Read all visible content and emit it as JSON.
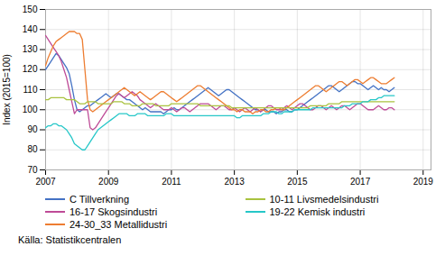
{
  "chart_data": {
    "type": "line",
    "ylabel": "Index (2015=100)",
    "xlim": [
      2007.0,
      2019.25
    ],
    "xticks": [
      2007,
      2009,
      2011,
      2013,
      2015,
      2017,
      2019
    ],
    "ylim": [
      70,
      150
    ],
    "yticks": [
      70,
      80,
      90,
      100,
      110,
      120,
      130,
      140,
      150
    ],
    "grid": true,
    "legend": "bottom",
    "source": "Källa: Statistikcentralen",
    "x": [
      2007,
      2007.083333,
      2007.166667,
      2007.25,
      2007.333333,
      2007.416667,
      2007.5,
      2007.583333,
      2007.666667,
      2007.75,
      2007.833333,
      2007.916667,
      2008,
      2008.083333,
      2008.166667,
      2008.25,
      2008.333333,
      2008.416667,
      2008.5,
      2008.583333,
      2008.666667,
      2008.75,
      2008.833333,
      2008.916667,
      2009,
      2009.083333,
      2009.166667,
      2009.25,
      2009.333333,
      2009.416667,
      2009.5,
      2009.583333,
      2009.666667,
      2009.75,
      2009.833333,
      2009.916667,
      2010,
      2010.083333,
      2010.166667,
      2010.25,
      2010.333333,
      2010.416667,
      2010.5,
      2010.583333,
      2010.666667,
      2010.75,
      2010.833333,
      2010.916667,
      2011,
      2011.083333,
      2011.166667,
      2011.25,
      2011.333333,
      2011.416667,
      2011.5,
      2011.583333,
      2011.666667,
      2011.75,
      2011.833333,
      2011.916667,
      2012,
      2012.083333,
      2012.166667,
      2012.25,
      2012.333333,
      2012.416667,
      2012.5,
      2012.583333,
      2012.666667,
      2012.75,
      2012.833333,
      2012.916667,
      2013,
      2013.083333,
      2013.166667,
      2013.25,
      2013.333333,
      2013.416667,
      2013.5,
      2013.583333,
      2013.666667,
      2013.75,
      2013.833333,
      2013.916667,
      2014,
      2014.083333,
      2014.166667,
      2014.25,
      2014.333333,
      2014.416667,
      2014.5,
      2014.583333,
      2014.666667,
      2014.75,
      2014.833333,
      2014.916667,
      2015,
      2015.083333,
      2015.166667,
      2015.25,
      2015.333333,
      2015.416667,
      2015.5,
      2015.583333,
      2015.666667,
      2015.75,
      2015.833333,
      2015.916667,
      2016,
      2016.083333,
      2016.166667,
      2016.25,
      2016.333333,
      2016.416667,
      2016.5,
      2016.583333,
      2016.666667,
      2016.75,
      2016.833333,
      2016.916667,
      2017,
      2017.083333,
      2017.166667,
      2017.25,
      2017.333333,
      2017.416667,
      2017.5,
      2017.583333,
      2017.666667,
      2017.75,
      2017.833333,
      2017.916667,
      2018,
      2018.083333
    ],
    "series": [
      {
        "name": "C Tillverkning",
        "color": "#4472C4",
        "values": [
          120,
          122,
          124,
          126,
          128,
          127,
          125,
          123,
          121,
          118,
          112,
          105,
          100,
          99,
          100,
          101,
          102,
          102,
          103,
          104,
          105,
          106,
          107,
          108,
          107,
          106,
          107,
          108,
          108,
          107,
          106,
          105,
          105,
          104,
          103,
          102,
          101,
          100,
          101,
          100,
          99,
          99,
          99,
          99,
          99,
          98,
          99,
          100,
          100,
          101,
          100,
          100,
          101,
          102,
          103,
          104,
          105,
          106,
          107,
          108,
          109,
          110,
          111,
          110,
          109,
          108,
          107,
          108,
          109,
          110,
          110,
          109,
          108,
          107,
          106,
          105,
          104,
          103,
          102,
          101,
          100,
          100,
          99,
          100,
          100,
          99,
          99,
          99,
          98,
          99,
          99,
          100,
          100,
          99,
          99,
          100,
          100,
          101,
          102,
          103,
          104,
          105,
          106,
          107,
          108,
          109,
          110,
          111,
          112,
          112,
          111,
          110,
          109,
          110,
          111,
          112,
          113,
          114,
          114,
          113,
          113,
          112,
          111,
          110,
          111,
          112,
          111,
          110,
          111,
          110,
          110,
          109,
          110,
          111
        ]
      },
      {
        "name": "16-17 Skogsindustri",
        "color": "#BE4B97",
        "values": [
          137,
          135,
          133,
          131,
          129,
          127,
          124,
          120,
          116,
          110,
          104,
          98,
          100,
          100,
          100,
          100,
          100,
          91,
          90,
          91,
          93,
          95,
          97,
          99,
          101,
          103,
          105,
          107,
          108,
          107,
          106,
          107,
          108,
          109,
          108,
          107,
          105,
          104,
          103,
          102,
          101,
          102,
          103,
          102,
          101,
          100,
          100,
          100,
          101,
          100,
          99,
          100,
          101,
          101,
          100,
          99,
          100,
          101,
          102,
          103,
          103,
          103,
          103,
          102,
          101,
          100,
          101,
          102,
          102,
          101,
          100,
          100,
          101,
          100,
          99,
          100,
          101,
          100,
          99,
          100,
          101,
          100,
          99,
          100,
          101,
          102,
          102,
          101,
          100,
          100,
          100,
          101,
          102,
          101,
          100,
          101,
          102,
          103,
          103,
          102,
          101,
          100,
          100,
          101,
          102,
          102,
          101,
          100,
          101,
          102,
          101,
          100,
          101,
          102,
          102,
          101,
          100,
          101,
          102,
          103,
          103,
          102,
          101,
          100,
          100,
          100,
          101,
          102,
          101,
          100,
          100,
          101,
          101,
          100
        ]
      },
      {
        "name": "24-30_33 Metallidustri",
        "color": "#ED7D31",
        "values": [
          122,
          126,
          129,
          132,
          134,
          135,
          136,
          137,
          138,
          139,
          139,
          139,
          138,
          138,
          135,
          120,
          105,
          100,
          99,
          100,
          101,
          102,
          103,
          104,
          105,
          106,
          107,
          108,
          109,
          110,
          111,
          110,
          109,
          108,
          107,
          108,
          109,
          108,
          107,
          106,
          105,
          106,
          107,
          108,
          109,
          109,
          108,
          107,
          106,
          105,
          104,
          105,
          106,
          107,
          108,
          109,
          110,
          111,
          112,
          112,
          111,
          110,
          109,
          108,
          107,
          106,
          105,
          104,
          103,
          102,
          101,
          100,
          100,
          99,
          100,
          100,
          99,
          99,
          99,
          98,
          99,
          99,
          100,
          100,
          99,
          99,
          100,
          100,
          101,
          101,
          100,
          100,
          101,
          102,
          103,
          104,
          105,
          106,
          107,
          108,
          109,
          110,
          111,
          112,
          112,
          111,
          110,
          109,
          110,
          111,
          112,
          113,
          114,
          114,
          113,
          112,
          113,
          114,
          115,
          115,
          114,
          113,
          114,
          115,
          116,
          116,
          115,
          114,
          113,
          113,
          113,
          114,
          115,
          116
        ]
      },
      {
        "name": "10-11 Livsmedelsindustri",
        "color": "#A9C23F",
        "values": [
          105,
          105,
          106,
          106,
          106,
          106,
          106,
          106,
          105,
          105,
          105,
          105,
          104,
          103,
          103,
          103,
          104,
          104,
          104,
          104,
          103,
          103,
          103,
          103,
          103,
          103,
          104,
          104,
          104,
          104,
          103,
          103,
          103,
          102,
          102,
          102,
          102,
          103,
          103,
          103,
          103,
          103,
          102,
          102,
          102,
          102,
          102,
          102,
          103,
          103,
          103,
          103,
          103,
          103,
          103,
          103,
          103,
          103,
          103,
          102,
          102,
          102,
          102,
          102,
          102,
          102,
          102,
          102,
          102,
          102,
          102,
          101,
          101,
          101,
          101,
          101,
          101,
          101,
          101,
          101,
          101,
          101,
          101,
          101,
          101,
          101,
          101,
          101,
          101,
          101,
          101,
          101,
          101,
          101,
          101,
          101,
          101,
          101,
          101,
          101,
          101,
          102,
          102,
          102,
          102,
          102,
          102,
          102,
          103,
          103,
          103,
          103,
          103,
          104,
          104,
          104,
          104,
          104,
          104,
          104,
          104,
          104,
          104,
          104,
          104,
          104,
          104,
          104,
          104,
          104,
          104,
          104,
          104,
          104
        ]
      },
      {
        "name": "19-22 Kemisk industri",
        "color": "#26C7C8",
        "values": [
          91,
          92,
          92,
          93,
          93,
          92,
          92,
          91,
          90,
          88,
          86,
          83,
          82,
          81,
          80,
          80,
          82,
          84,
          86,
          88,
          90,
          91,
          92,
          93,
          94,
          95,
          96,
          97,
          98,
          98,
          98,
          98,
          97,
          97,
          97,
          98,
          98,
          98,
          98,
          97,
          97,
          97,
          97,
          97,
          97,
          97,
          98,
          98,
          98,
          97,
          97,
          97,
          97,
          97,
          97,
          97,
          97,
          97,
          97,
          97,
          97,
          97,
          97,
          97,
          97,
          97,
          97,
          97,
          97,
          97,
          97,
          97,
          97,
          96,
          96,
          97,
          97,
          97,
          97,
          97,
          97,
          97,
          97,
          98,
          98,
          98,
          99,
          99,
          99,
          98,
          98,
          99,
          99,
          99,
          99,
          100,
          100,
          100,
          100,
          100,
          100,
          100,
          101,
          101,
          101,
          101,
          101,
          101,
          101,
          101,
          101,
          101,
          101,
          101,
          102,
          102,
          102,
          103,
          103,
          103,
          103,
          104,
          104,
          104,
          105,
          105,
          105,
          106,
          106,
          107,
          107,
          107,
          107,
          107
        ]
      }
    ]
  }
}
